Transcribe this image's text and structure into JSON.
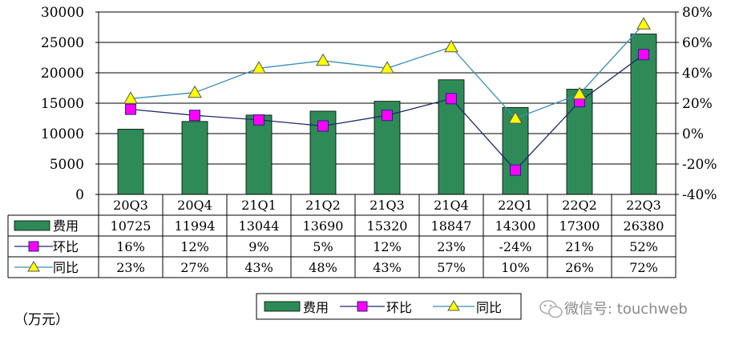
{
  "chart_data": {
    "type": "bar",
    "categories": [
      "20Q3",
      "20Q4",
      "21Q1",
      "21Q2",
      "21Q3",
      "21Q4",
      "22Q1",
      "22Q2",
      "22Q3"
    ],
    "series": [
      {
        "name": "费用",
        "type": "bar",
        "axis": "left",
        "values": [
          10725,
          11994,
          13044,
          13690,
          15320,
          18847,
          14300,
          17300,
          26380
        ],
        "labels": [
          "10725",
          "11994",
          "13044",
          "13690",
          "15320",
          "18847",
          "14300",
          "17300",
          "26380"
        ],
        "color": "#2e8b57"
      },
      {
        "name": "环比",
        "type": "line",
        "axis": "right",
        "marker": "square",
        "values": [
          16,
          12,
          9,
          5,
          12,
          23,
          -24,
          21,
          52
        ],
        "labels": [
          "16%",
          "12%",
          "9%",
          "5%",
          "12%",
          "23%",
          "-24%",
          "21%",
          "52%"
        ],
        "color": "#ff00ff",
        "line_color": "#1f2a6b"
      },
      {
        "name": "同比",
        "type": "line",
        "axis": "right",
        "marker": "triangle",
        "values": [
          23,
          27,
          43,
          48,
          43,
          57,
          10,
          26,
          72
        ],
        "labels": [
          "23%",
          "27%",
          "43%",
          "48%",
          "43%",
          "57%",
          "10%",
          "26%",
          "72%"
        ],
        "color": "#ffff00",
        "line_color": "#3a8fb7"
      }
    ],
    "left_axis": {
      "min": 0,
      "max": 30000,
      "ticks": [
        "0",
        "5000",
        "10000",
        "15000",
        "20000",
        "25000",
        "30000"
      ]
    },
    "right_axis": {
      "min": -40,
      "max": 80,
      "ticks": [
        "-40%",
        "-20%",
        "0%",
        "20%",
        "40%",
        "60%",
        "80%"
      ]
    },
    "unit_label": "（万元）",
    "legend": [
      "费用",
      "环比",
      "同比"
    ],
    "legend_position": "bottom",
    "grid": true,
    "data_table": true
  },
  "watermark": {
    "text": "微信号: touchweb",
    "icon": "wechat-icon"
  }
}
